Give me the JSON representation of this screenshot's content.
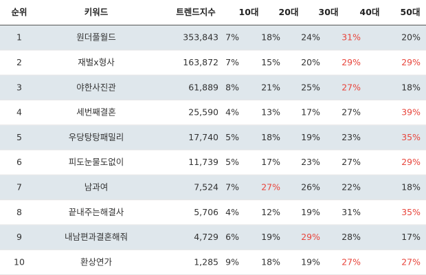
{
  "table": {
    "header": [
      "순위",
      "키워드",
      "트렌드지수",
      "10대",
      "20대",
      "30대",
      "40대",
      "50대"
    ],
    "rows": [
      [
        "1",
        "원더풀월드",
        "353,843",
        "7%",
        "18%",
        "24%",
        "31%",
        "20%"
      ],
      [
        "2",
        "재벌x형사",
        "163,872",
        "7%",
        "15%",
        "20%",
        "29%",
        "29%"
      ],
      [
        "3",
        "야한사진관",
        "61,889",
        "8%",
        "21%",
        "25%",
        "27%",
        "18%"
      ],
      [
        "4",
        "세번째결혼",
        "25,590",
        "4%",
        "13%",
        "17%",
        "27%",
        "39%"
      ],
      [
        "5",
        "우당탕탕패밀리",
        "17,740",
        "5%",
        "18%",
        "19%",
        "23%",
        "35%"
      ],
      [
        "6",
        "피도눈물도없이",
        "11,739",
        "5%",
        "17%",
        "23%",
        "27%",
        "29%"
      ],
      [
        "7",
        "남과여",
        "7,524",
        "7%",
        "27%",
        "26%",
        "22%",
        "18%"
      ],
      [
        "8",
        "끝내주는해결사",
        "5,706",
        "4%",
        "12%",
        "19%",
        "31%",
        "35%"
      ],
      [
        "9",
        "내남편과결혼해줘",
        "4,729",
        "6%",
        "19%",
        "29%",
        "28%",
        "17%"
      ],
      [
        "10",
        "환상연가",
        "1,285",
        "9%",
        "18%",
        "19%",
        "27%",
        "27%"
      ]
    ],
    "highlight": [
      [
        6
      ],
      [
        6,
        7
      ],
      [
        6
      ],
      [
        7
      ],
      [
        7
      ],
      [
        7
      ],
      [
        4
      ],
      [
        7
      ],
      [
        5
      ],
      [
        6,
        7
      ]
    ],
    "highlight_color": "#e8453c",
    "stripe_color": "#dfe7ec"
  }
}
